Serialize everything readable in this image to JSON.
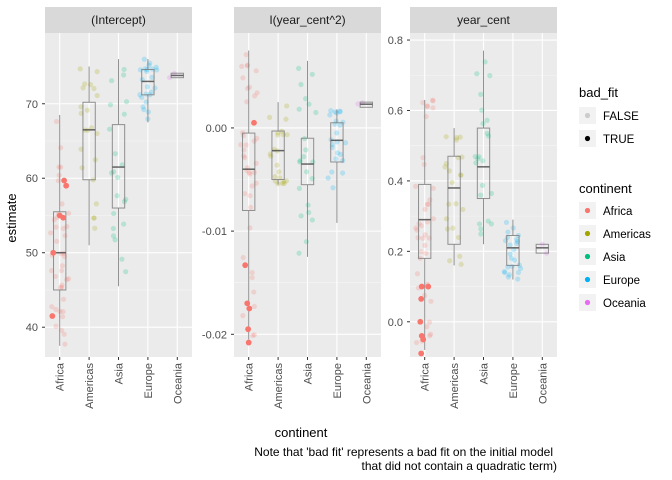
{
  "chart_data": {
    "type": "boxplot",
    "x_label": "continent",
    "y_label": "estimate",
    "caption_lines": [
      "Note that 'bad fit' represents a bad fit on the initial model",
      "that did not contain a quadratic term)"
    ],
    "categories": [
      "Africa",
      "Americas",
      "Asia",
      "Europe",
      "Oceania"
    ],
    "colors": {
      "Africa": "#F8766D",
      "Americas": "#A3A500",
      "Asia": "#00BF7D",
      "Europe": "#00B0F6",
      "Oceania": "#E76BF3"
    },
    "legends": {
      "bad_fit": {
        "title": "bad_fit",
        "items": [
          "FALSE",
          "TRUE"
        ]
      },
      "continent": {
        "title": "continent",
        "items": [
          "Africa",
          "Americas",
          "Asia",
          "Europe",
          "Oceania"
        ]
      }
    },
    "panels": [
      {
        "title": "(Intercept)",
        "ylim": [
          36,
          79.5
        ],
        "ticks": [
          40,
          50,
          60,
          70
        ],
        "tick_labels": [
          "40",
          "50",
          "60",
          "70"
        ],
        "boxes": [
          {
            "category": "Africa",
            "min": 37.5,
            "q1": 45.0,
            "median": 50.0,
            "q3": 55.5,
            "max": 68.5
          },
          {
            "category": "Americas",
            "min": 51.0,
            "q1": 59.8,
            "median": 66.5,
            "q3": 70.2,
            "max": 75.0
          },
          {
            "category": "Asia",
            "min": 45.5,
            "q1": 56.0,
            "median": 61.5,
            "q3": 67.2,
            "max": 76.0
          },
          {
            "category": "Europe",
            "min": 67.5,
            "q1": 71.2,
            "median": 73.0,
            "q3": 74.6,
            "max": 76.0
          },
          {
            "category": "Oceania",
            "min": 73.5,
            "q1": 73.5,
            "median": 73.8,
            "q3": 74.1,
            "max": 74.1
          }
        ],
        "bad_fit_points": [
          {
            "category": "Africa",
            "y": 41.5,
            "dx": -0.25
          },
          {
            "category": "Africa",
            "y": 50.0,
            "dx": -0.22
          },
          {
            "category": "Africa",
            "y": 54.7,
            "dx": 0.12
          },
          {
            "category": "Africa",
            "y": 55.0,
            "dx": 0.0
          },
          {
            "category": "Africa",
            "y": 59.0,
            "dx": 0.22
          },
          {
            "category": "Africa",
            "y": 59.7,
            "dx": 0.15
          }
        ]
      },
      {
        "title": "I(year_cent^2)",
        "ylim": [
          -0.0222,
          0.0092
        ],
        "ticks": [
          -0.02,
          -0.01,
          0.0
        ],
        "tick_labels": [
          "-0.02",
          "-0.01",
          "0.00"
        ],
        "boxes": [
          {
            "category": "Africa",
            "min": -0.0205,
            "q1": -0.008,
            "median": -0.004,
            "q3": -0.0005,
            "max": 0.0075
          },
          {
            "category": "Americas",
            "min": -0.0055,
            "q1": -0.005,
            "median": -0.0022,
            "q3": -0.0003,
            "max": 0.0025
          },
          {
            "category": "Asia",
            "min": -0.0125,
            "q1": -0.0055,
            "median": -0.0035,
            "q3": -0.001,
            "max": 0.0065
          },
          {
            "category": "Europe",
            "min": -0.0092,
            "q1": -0.0033,
            "median": -0.0012,
            "q3": 0.0005,
            "max": 0.0018
          },
          {
            "category": "Oceania",
            "min": 0.002,
            "q1": 0.002,
            "median": 0.0023,
            "q3": 0.0025,
            "max": 0.0025
          }
        ],
        "bad_fit_points": [
          {
            "category": "Africa",
            "y": 0.0005,
            "dx": 0.18
          },
          {
            "category": "Africa",
            "y": -0.0133,
            "dx": -0.12
          },
          {
            "category": "Africa",
            "y": -0.017,
            "dx": -0.05
          },
          {
            "category": "Africa",
            "y": -0.0175,
            "dx": 0.02
          },
          {
            "category": "Africa",
            "y": -0.0195,
            "dx": -0.02
          },
          {
            "category": "Africa",
            "y": -0.0208,
            "dx": 0.0
          }
        ]
      },
      {
        "title": "year_cent",
        "ylim": [
          -0.1,
          0.82
        ],
        "ticks": [
          0.0,
          0.2,
          0.4,
          0.6,
          0.8
        ],
        "tick_labels": [
          "0.0",
          "0.2",
          "0.4",
          "0.6",
          "0.8"
        ],
        "boxes": [
          {
            "category": "Africa",
            "min": -0.08,
            "q1": 0.18,
            "median": 0.29,
            "q3": 0.39,
            "max": 0.63
          },
          {
            "category": "Americas",
            "min": 0.16,
            "q1": 0.22,
            "median": 0.38,
            "q3": 0.47,
            "max": 0.55
          },
          {
            "category": "Asia",
            "min": 0.22,
            "q1": 0.35,
            "median": 0.44,
            "q3": 0.55,
            "max": 0.77
          },
          {
            "category": "Europe",
            "min": 0.12,
            "q1": 0.16,
            "median": 0.21,
            "q3": 0.245,
            "max": 0.29
          },
          {
            "category": "Oceania",
            "min": 0.195,
            "q1": 0.195,
            "median": 0.21,
            "q3": 0.22,
            "max": 0.22
          }
        ],
        "bad_fit_points": [
          {
            "category": "Africa",
            "y": 0.1,
            "dx": 0.12
          },
          {
            "category": "Africa",
            "y": 0.1,
            "dx": -0.1
          },
          {
            "category": "Africa",
            "y": 0.065,
            "dx": -0.12
          },
          {
            "category": "Africa",
            "y": 0.0,
            "dx": -0.15
          },
          {
            "category": "Africa",
            "y": -0.04,
            "dx": -0.1
          },
          {
            "category": "Africa",
            "y": -0.05,
            "dx": -0.05
          },
          {
            "category": "Africa",
            "y": -0.09,
            "dx": -0.12
          }
        ]
      }
    ]
  }
}
